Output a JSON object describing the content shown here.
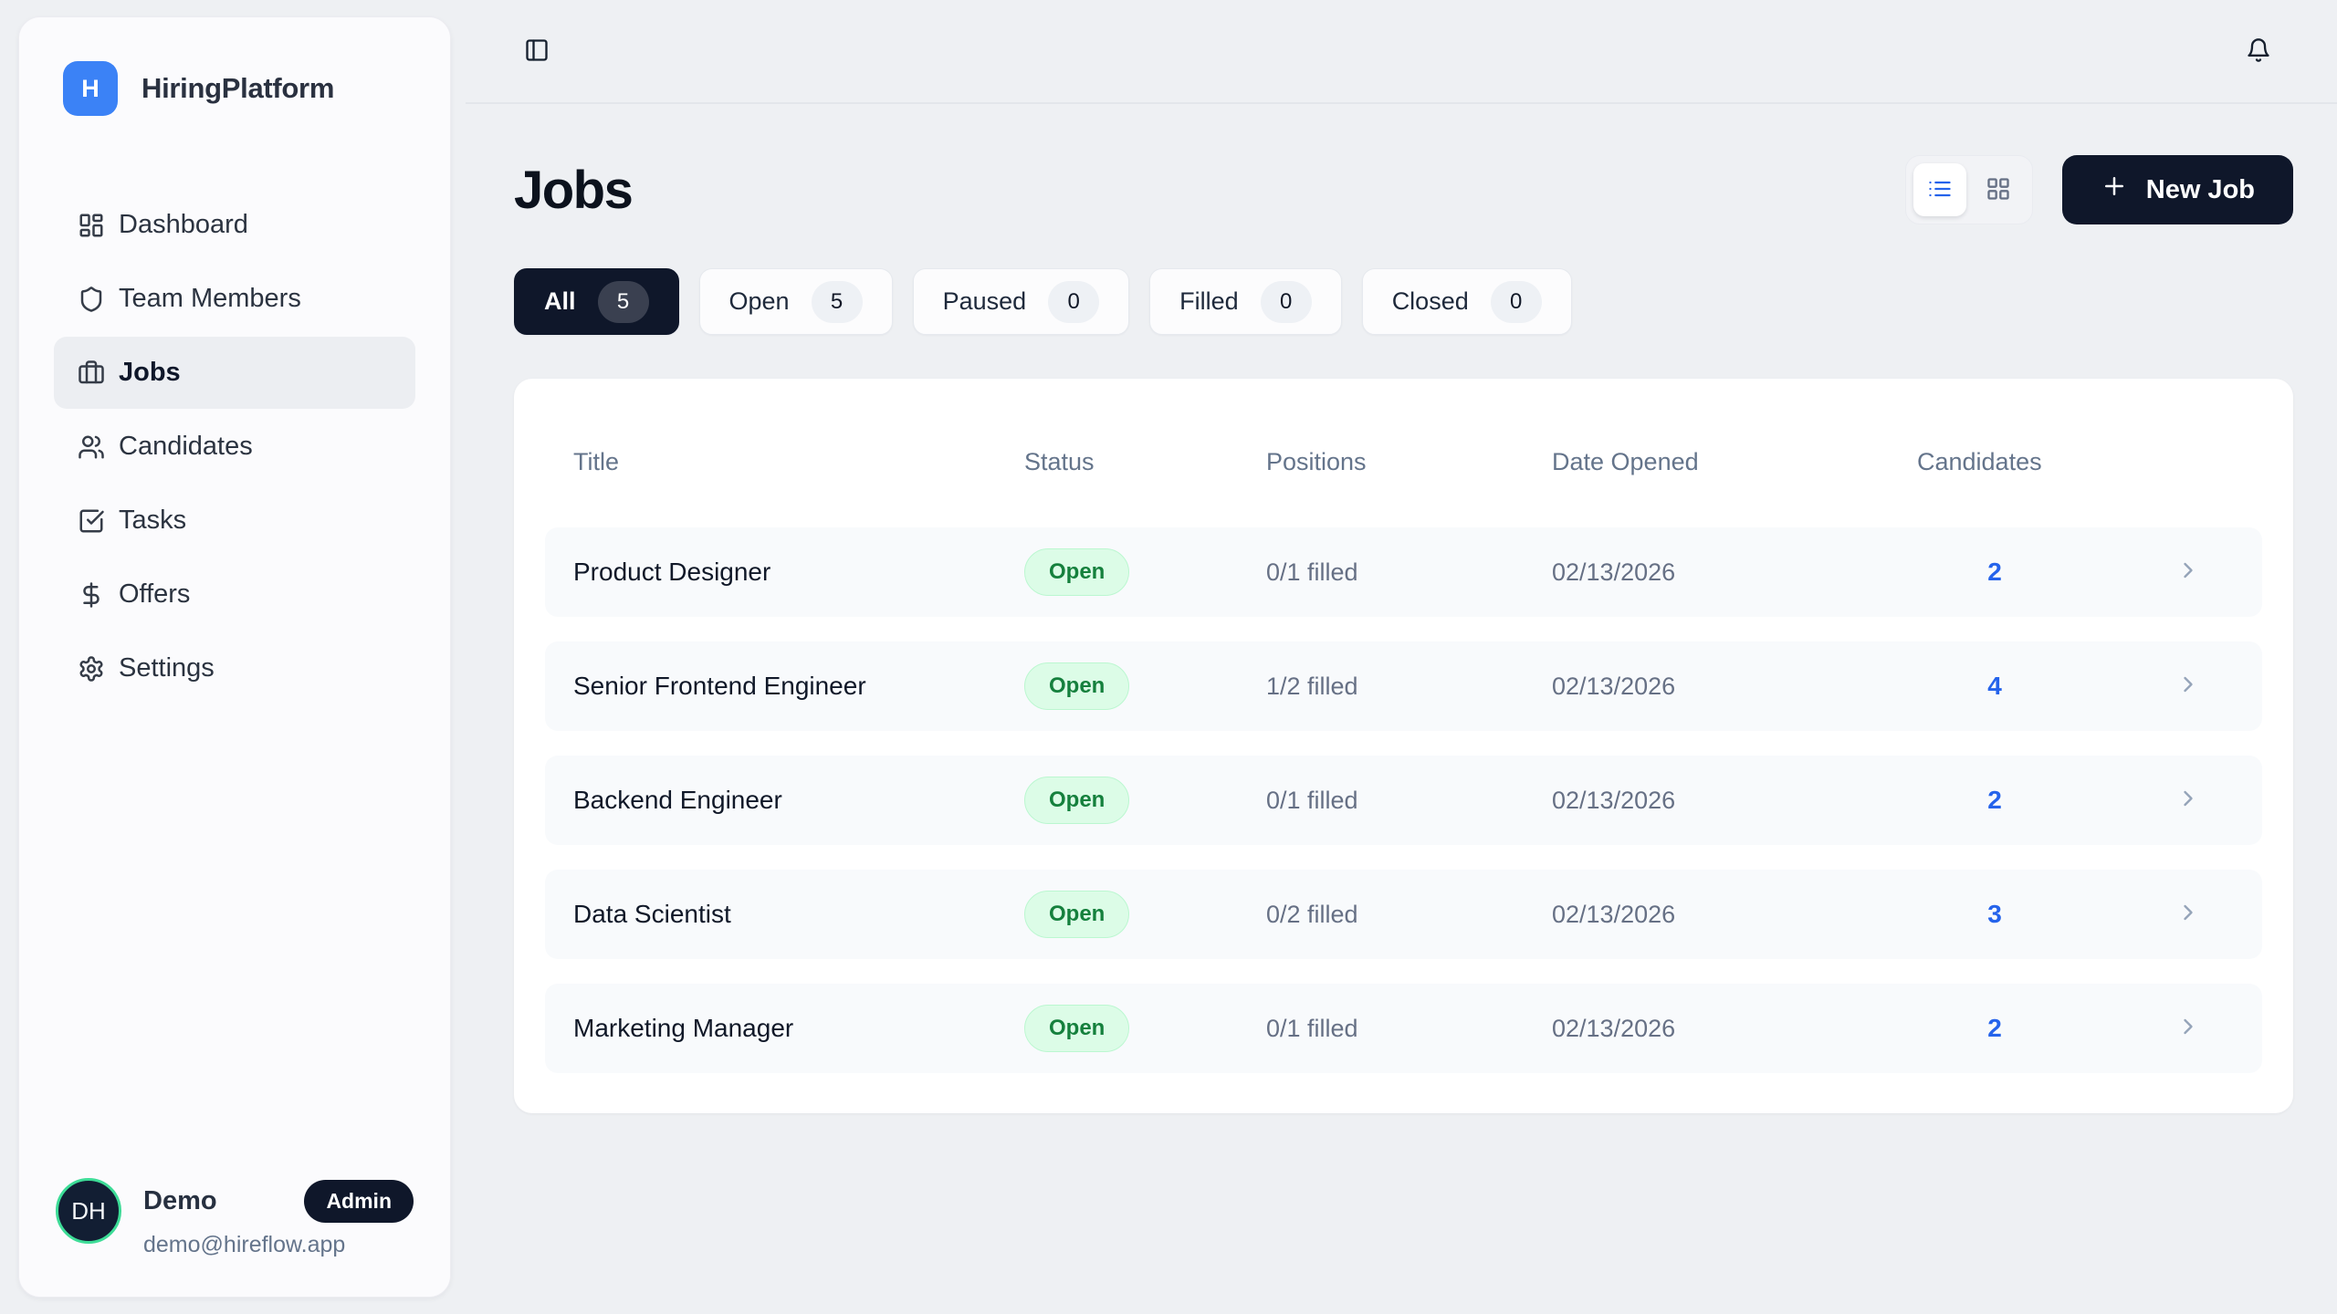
{
  "brand": {
    "name": "HiringPlatform",
    "logo_letter": "H"
  },
  "sidebar": {
    "items": [
      {
        "label": "Dashboard",
        "icon": "layout-dashboard-icon",
        "active": false
      },
      {
        "label": "Team Members",
        "icon": "shield-icon",
        "active": false
      },
      {
        "label": "Jobs",
        "icon": "briefcase-icon",
        "active": true
      },
      {
        "label": "Candidates",
        "icon": "users-icon",
        "active": false
      },
      {
        "label": "Tasks",
        "icon": "square-check-icon",
        "active": false
      },
      {
        "label": "Offers",
        "icon": "dollar-icon",
        "active": false
      },
      {
        "label": "Settings",
        "icon": "gear-icon",
        "active": false
      }
    ],
    "user": {
      "initials": "DH",
      "name": "Demo",
      "role_badge": "Admin",
      "email": "demo@hireflow.app"
    }
  },
  "page": {
    "title": "Jobs",
    "new_job_label": "New Job",
    "filters": [
      {
        "label": "All",
        "count": 5,
        "active": true
      },
      {
        "label": "Open",
        "count": 5,
        "active": false
      },
      {
        "label": "Paused",
        "count": 0,
        "active": false
      },
      {
        "label": "Filled",
        "count": 0,
        "active": false
      },
      {
        "label": "Closed",
        "count": 0,
        "active": false
      }
    ],
    "table": {
      "columns": [
        "Title",
        "Status",
        "Positions",
        "Date Opened",
        "Candidates"
      ],
      "rows": [
        {
          "title": "Product Designer",
          "status": "Open",
          "positions": "0/1 filled",
          "date_opened": "02/13/2026",
          "candidates": 2
        },
        {
          "title": "Senior Frontend Engineer",
          "status": "Open",
          "positions": "1/2 filled",
          "date_opened": "02/13/2026",
          "candidates": 4
        },
        {
          "title": "Backend Engineer",
          "status": "Open",
          "positions": "0/1 filled",
          "date_opened": "02/13/2026",
          "candidates": 2
        },
        {
          "title": "Data Scientist",
          "status": "Open",
          "positions": "0/2 filled",
          "date_opened": "02/13/2026",
          "candidates": 3
        },
        {
          "title": "Marketing Manager",
          "status": "Open",
          "positions": "0/1 filled",
          "date_opened": "02/13/2026",
          "candidates": 2
        }
      ]
    }
  },
  "colors": {
    "accent_blue": "#3b82f6",
    "link_blue": "#2563eb",
    "navy": "#0f172a",
    "status_open_bg": "#dcfce7",
    "status_open_text": "#15803d",
    "avatar_ring_green": "#3ddc97",
    "page_bg": "#eef0f3"
  }
}
